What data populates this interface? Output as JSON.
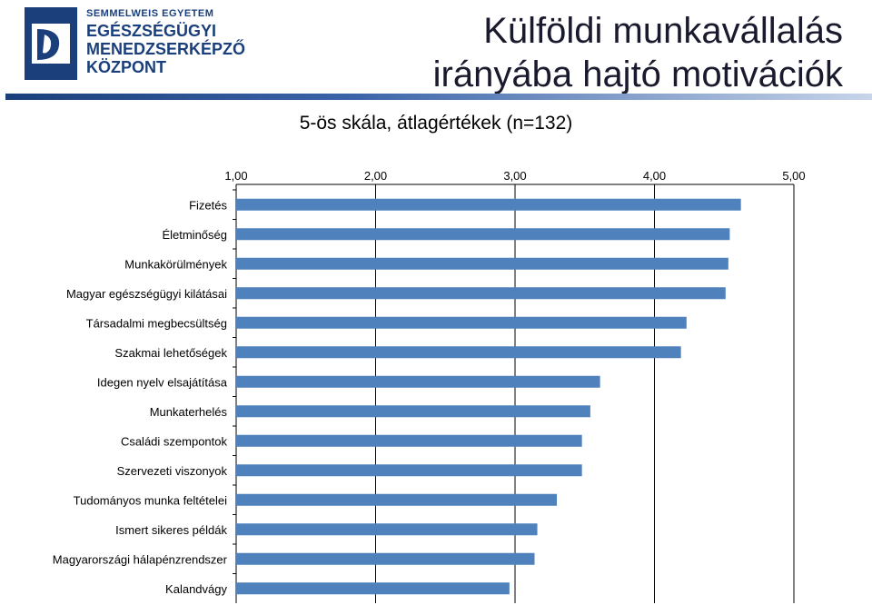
{
  "logo": {
    "line1": "SEMMELWEIS EGYETEM",
    "line2": "EGÉSZSÉGÜGYI",
    "line3": "MENEDZSERKÉPZŐ",
    "line4": "KÖZPONT"
  },
  "title_line1": "Külföldi munkavállalás",
  "title_line2": "irányába hajtó motivációk",
  "subtitle": "5-ös skála, átlagértékek (n=132)",
  "colors": {
    "bar": "#4f81bd",
    "brand": "#1a3f7a"
  },
  "chart_data": {
    "type": "bar",
    "orientation": "horizontal",
    "title": "5-ös skála, átlagértékek (n=132)",
    "xlim": [
      1,
      5
    ],
    "xticks": [
      "1,00",
      "2,00",
      "3,00",
      "4,00",
      "5,00"
    ],
    "axis_position": "top",
    "grid": true,
    "categories": [
      "Fizetés",
      "Életminőség",
      "Munkakörülmények",
      "Magyar egészségügyi kilátásai",
      "Társadalmi megbecsültség",
      "Szakmai lehetőségek",
      "Idegen nyelv elsajátítása",
      "Munkaterhelés",
      "Családi szempontok",
      "Szervezeti viszonyok",
      "Tudományos munka feltételei",
      "Ismert sikeres példák",
      "Magyarországi hálapénzrendszer",
      "Kalandvágy"
    ],
    "values": [
      4.62,
      4.54,
      4.53,
      4.51,
      4.23,
      4.19,
      3.61,
      3.54,
      3.48,
      3.48,
      3.3,
      3.16,
      3.14,
      2.96
    ]
  }
}
